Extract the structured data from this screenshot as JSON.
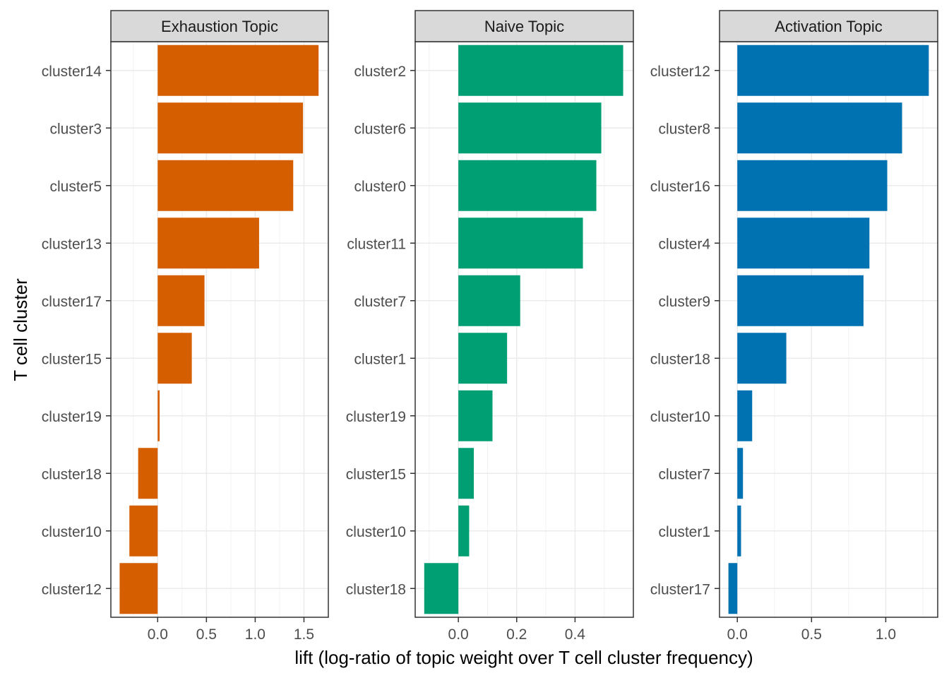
{
  "chart_data": {
    "type": "bar",
    "orientation": "horizontal",
    "xlabel": "lift (log-ratio of topic weight over T cell cluster frequency)",
    "ylabel": "T cell cluster",
    "grid": true,
    "legend": "none",
    "panels": [
      {
        "title": "Exhaustion Topic",
        "color": "#D55E00",
        "xlim": [
          -0.48,
          1.75
        ],
        "xticks": [
          0.0,
          0.5,
          1.0,
          1.5
        ],
        "xtick_labels": [
          "0.0",
          "0.5",
          "1.0",
          "1.5"
        ],
        "categories": [
          "cluster14",
          "cluster3",
          "cluster5",
          "cluster13",
          "cluster17",
          "cluster15",
          "cluster19",
          "cluster18",
          "cluster10",
          "cluster12"
        ],
        "values": [
          1.65,
          1.49,
          1.39,
          1.04,
          0.48,
          0.35,
          0.02,
          -0.2,
          -0.29,
          -0.39
        ]
      },
      {
        "title": "Naive Topic",
        "color": "#009E73",
        "xlim": [
          -0.148,
          0.6
        ],
        "xticks": [
          0.0,
          0.2,
          0.4
        ],
        "xtick_labels": [
          "0.0",
          "0.2",
          "0.4"
        ],
        "categories": [
          "cluster2",
          "cluster6",
          "cluster0",
          "cluster11",
          "cluster7",
          "cluster1",
          "cluster19",
          "cluster15",
          "cluster10",
          "cluster18"
        ],
        "values": [
          0.565,
          0.49,
          0.473,
          0.427,
          0.212,
          0.167,
          0.117,
          0.053,
          0.037,
          -0.117
        ]
      },
      {
        "title": "Activation Topic",
        "color": "#0072B2",
        "xlim": [
          -0.12,
          1.35
        ],
        "xticks": [
          0.0,
          0.5,
          1.0
        ],
        "xtick_labels": [
          "0.0",
          "0.5",
          "1.0"
        ],
        "categories": [
          "cluster12",
          "cluster8",
          "cluster16",
          "cluster4",
          "cluster9",
          "cluster18",
          "cluster10",
          "cluster7",
          "cluster1",
          "cluster17"
        ],
        "values": [
          1.29,
          1.11,
          1.01,
          0.89,
          0.85,
          0.33,
          0.1,
          0.038,
          0.025,
          -0.06
        ]
      }
    ]
  }
}
